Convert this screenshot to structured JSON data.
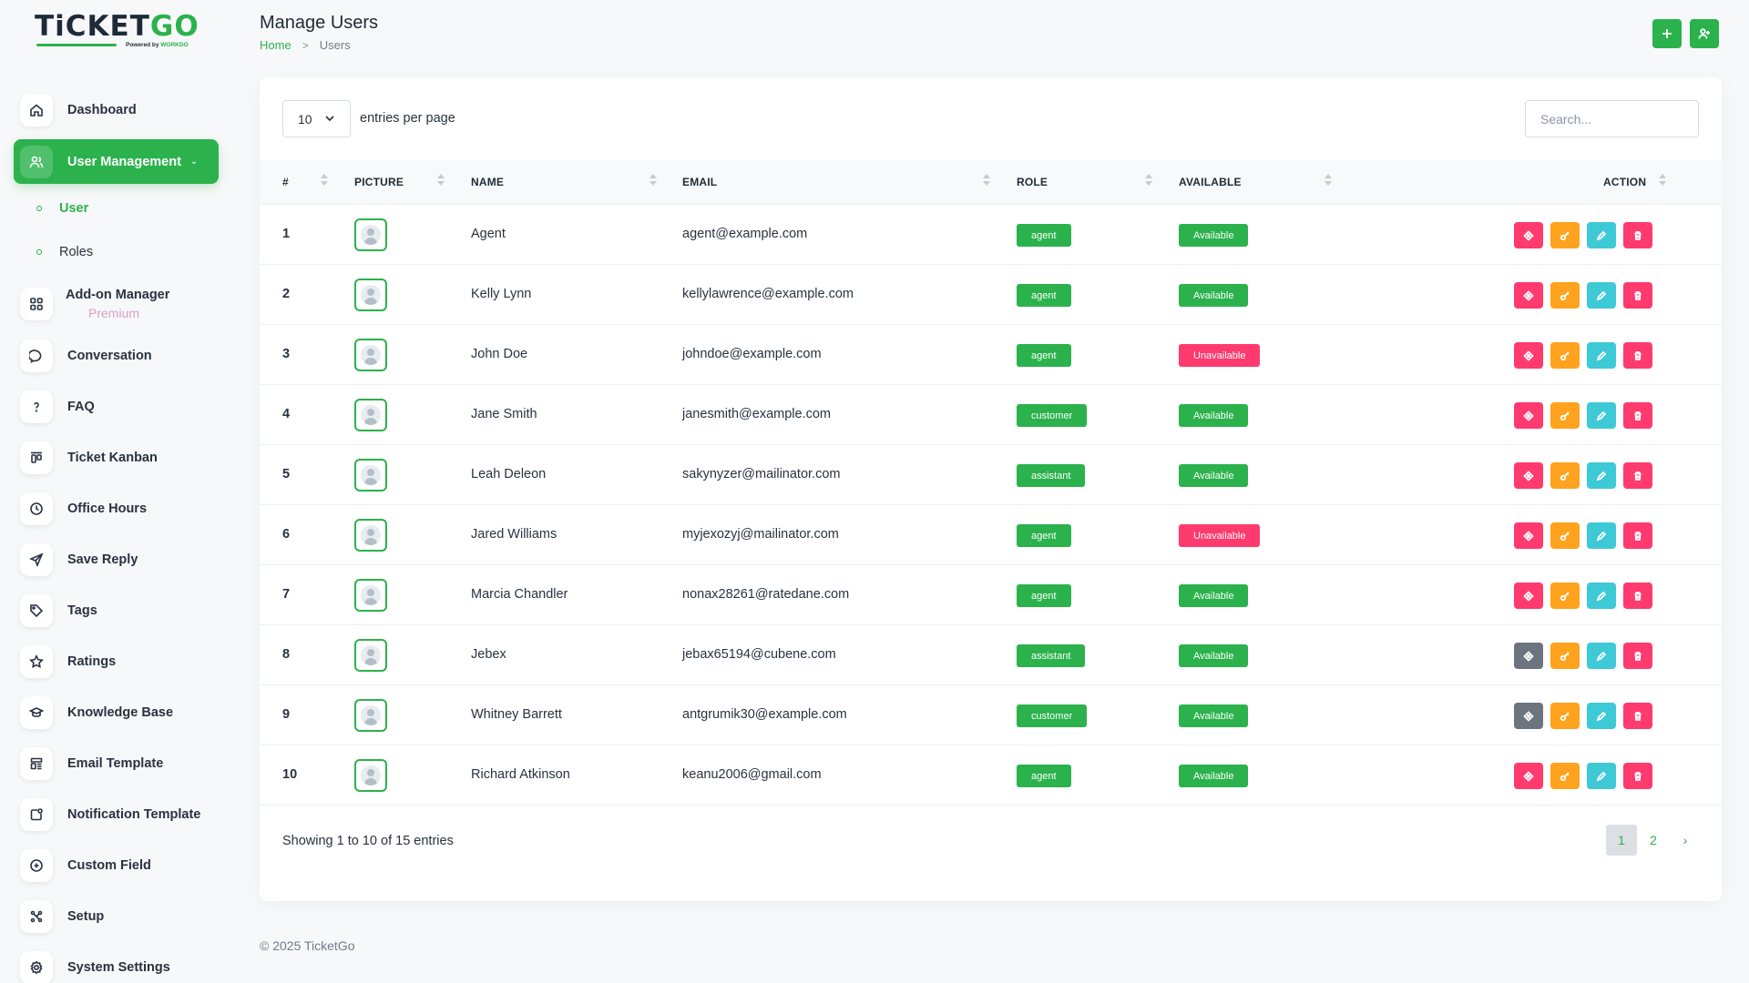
{
  "brand": {
    "logo_main": "TiCKET",
    "logo_accent": "GO",
    "powered_prefix": "Powered by",
    "powered_brand": "WORKDO"
  },
  "sidebar": {
    "items": [
      {
        "label": "Dashboard",
        "icon": "home-icon"
      },
      {
        "label": "User Management",
        "icon": "users-icon"
      },
      {
        "label": "Add-on Manager",
        "icon": "apps-icon"
      },
      {
        "label": "Conversation",
        "icon": "chat-icon"
      },
      {
        "label": "FAQ",
        "icon": "question-icon"
      },
      {
        "label": "Ticket Kanban",
        "icon": "kanban-icon"
      },
      {
        "label": "Office Hours",
        "icon": "clock-icon"
      },
      {
        "label": "Save Reply",
        "icon": "send-icon"
      },
      {
        "label": "Tags",
        "icon": "tag-icon"
      },
      {
        "label": "Ratings",
        "icon": "star-icon"
      },
      {
        "label": "Knowledge Base",
        "icon": "school-icon"
      },
      {
        "label": "Email Template",
        "icon": "template-icon"
      },
      {
        "label": "Notification Template",
        "icon": "notification-icon"
      },
      {
        "label": "Custom Field",
        "icon": "plus-circle-icon"
      },
      {
        "label": "Setup",
        "icon": "setup-icon"
      },
      {
        "label": "System Settings",
        "icon": "settings-icon"
      }
    ],
    "sub_items": [
      {
        "label": "User"
      },
      {
        "label": "Roles"
      }
    ],
    "premium_label": "Premium"
  },
  "header": {
    "title": "Manage Users",
    "breadcrumb": {
      "home": "Home",
      "sep": ">",
      "current": "Users"
    },
    "create_icon": "plus-icon",
    "assign_icon": "user-plus-icon"
  },
  "table_controls": {
    "per_page_value": "10",
    "per_page_label": "entries per page",
    "search_placeholder": "Search..."
  },
  "columns": [
    "#",
    "PICTURE",
    "NAME",
    "EMAIL",
    "ROLE",
    "AVAILABLE",
    "ACTION"
  ],
  "rows": [
    {
      "num": "1",
      "name": "Agent",
      "email": "agent@example.com",
      "role": "agent",
      "available": "Available",
      "first_action": "pink"
    },
    {
      "num": "2",
      "name": "Kelly Lynn",
      "email": "kellylawrence@example.com",
      "role": "agent",
      "available": "Available",
      "first_action": "pink"
    },
    {
      "num": "3",
      "name": "John Doe",
      "email": "johndoe@example.com",
      "role": "agent",
      "available": "Unavailable",
      "first_action": "pink"
    },
    {
      "num": "4",
      "name": "Jane Smith",
      "email": "janesmith@example.com",
      "role": "customer",
      "available": "Available",
      "first_action": "pink"
    },
    {
      "num": "5",
      "name": "Leah Deleon",
      "email": "sakynyzer@mailinator.com",
      "role": "assistant",
      "available": "Available",
      "first_action": "pink"
    },
    {
      "num": "6",
      "name": "Jared Williams",
      "email": "myjexozyj@mailinator.com",
      "role": "agent",
      "available": "Unavailable",
      "first_action": "pink"
    },
    {
      "num": "7",
      "name": "Marcia Chandler",
      "email": "nonax28261@ratedane.com",
      "role": "agent",
      "available": "Available",
      "first_action": "pink"
    },
    {
      "num": "8",
      "name": "Jebex",
      "email": "jebax65194@cubene.com",
      "role": "assistant",
      "available": "Available",
      "first_action": "gray"
    },
    {
      "num": "9",
      "name": "Whitney Barrett",
      "email": "antgrumik30@example.com",
      "role": "customer",
      "available": "Available",
      "first_action": "gray"
    },
    {
      "num": "10",
      "name": "Richard Atkinson",
      "email": "keanu2006@gmail.com",
      "role": "agent",
      "available": "Available",
      "first_action": "pink"
    }
  ],
  "pagination": {
    "summary": "Showing 1 to 10 of 15 entries",
    "pages": [
      "1",
      "2"
    ],
    "current": "1",
    "next": "›"
  },
  "footer": {
    "text": "© 2025 TicketGo"
  },
  "colors": {
    "accent": "#2bb24c",
    "danger": "#ff3a6e",
    "warning": "#ffa21d",
    "info": "#3ec9d6",
    "secondary": "#6c757d"
  }
}
